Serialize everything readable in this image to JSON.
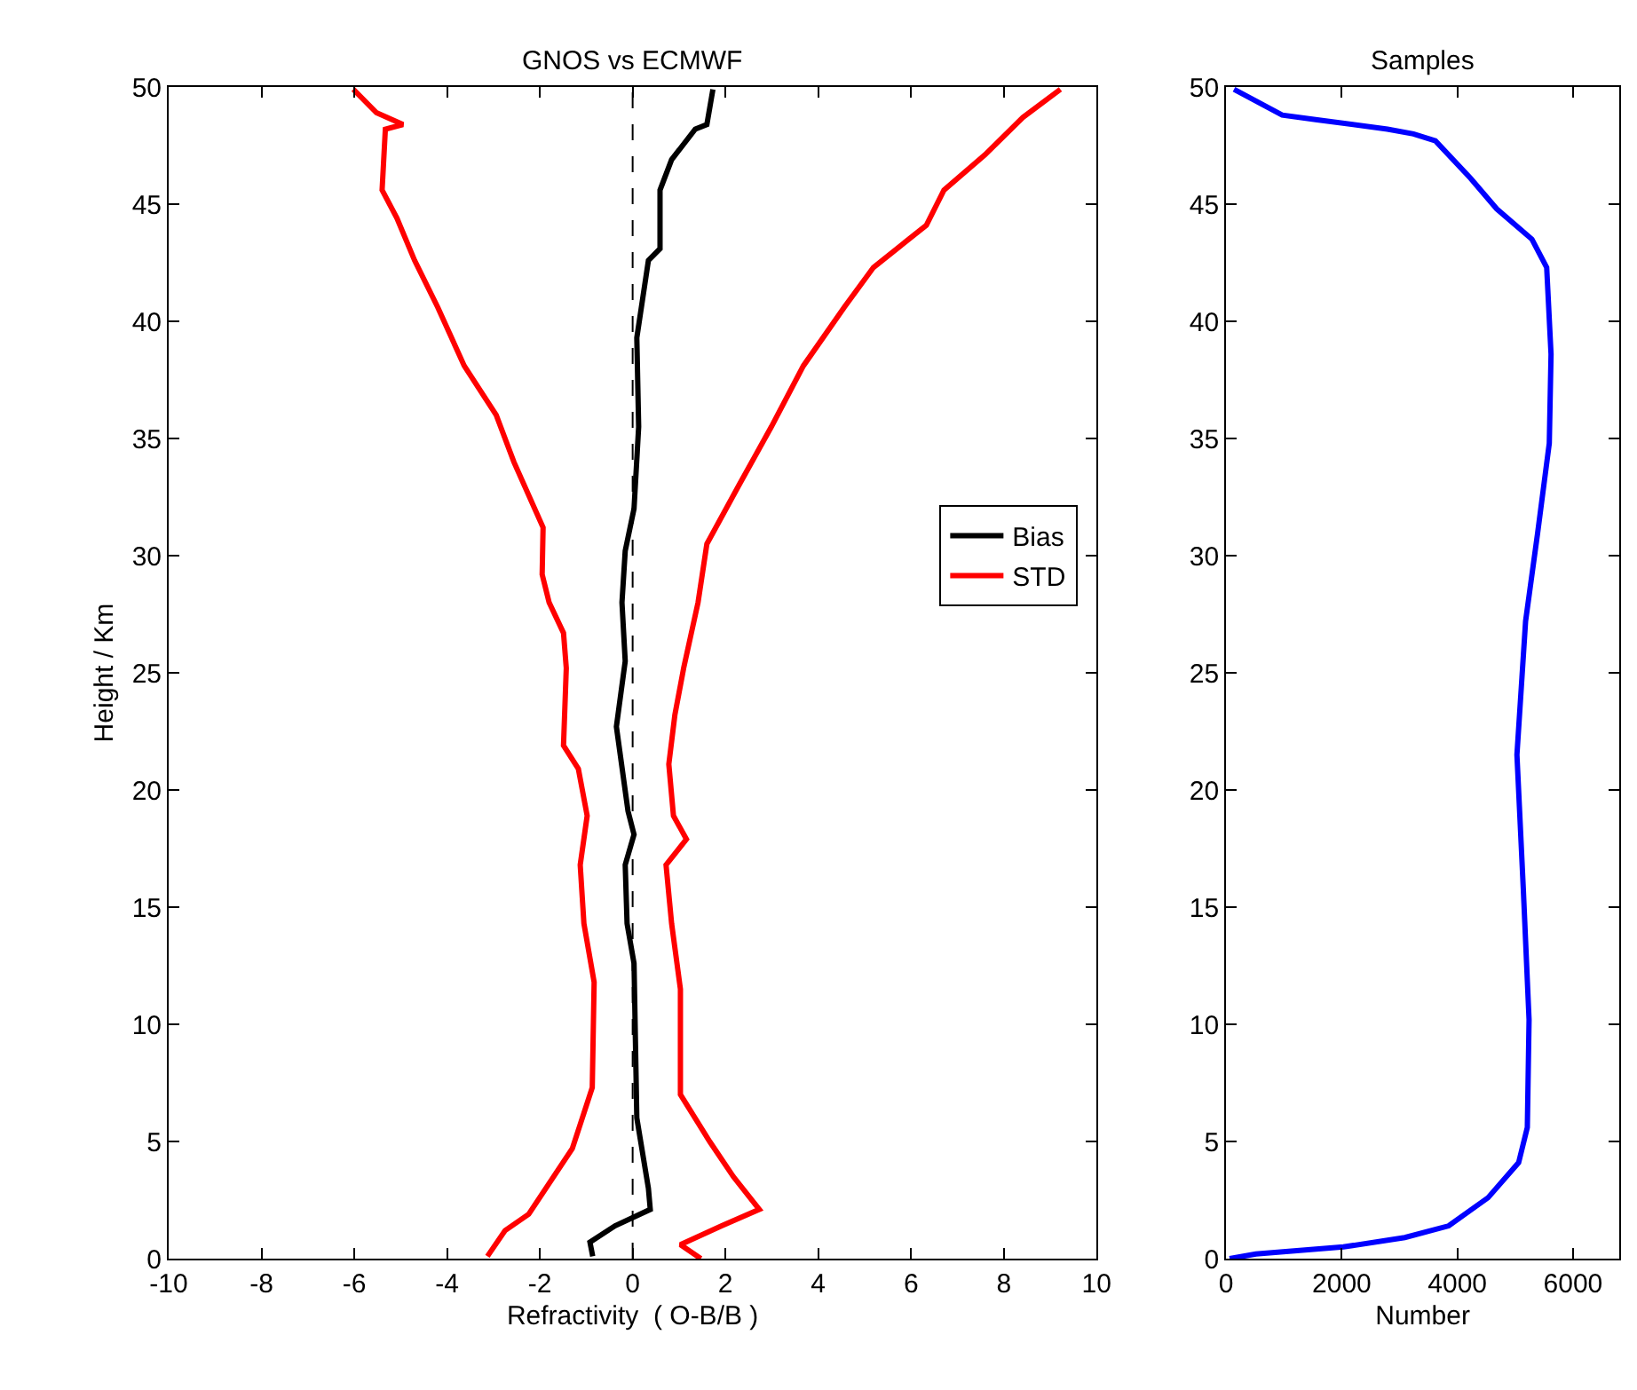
{
  "chart_data": [
    {
      "type": "line",
      "title": "GNOS vs ECMWF",
      "xlabel": "Refractivity  ( O-B/B )",
      "ylabel": "Height / Km",
      "xlim": [
        -10,
        10
      ],
      "xticks": [
        -10,
        -8,
        -6,
        -4,
        -2,
        0,
        2,
        4,
        6,
        8,
        10
      ],
      "ylim": [
        0,
        50
      ],
      "yticks": [
        0,
        5,
        10,
        15,
        20,
        25,
        30,
        35,
        40,
        45,
        50
      ],
      "legend": "right",
      "ref_lines": [
        {
          "axis": "x",
          "value": 0,
          "color": "#000000",
          "line_style": "dashed"
        }
      ],
      "series": [
        {
          "name": "Bias",
          "color": "#000000",
          "x": [
            -0.86,
            -0.92,
            -0.38,
            0.38,
            0.34,
            0.09,
            0.03,
            -0.12,
            -0.16,
            0.03,
            -0.1,
            -0.35,
            -0.16,
            -0.23,
            -0.16,
            0.03,
            0.13,
            0.09,
            0.34,
            0.59,
            0.59,
            0.84,
            1.35,
            1.6,
            1.73
          ],
          "values": [
            0.1,
            0.7,
            1.4,
            2.1,
            3.0,
            6.0,
            12.6,
            14.3,
            16.8,
            18.1,
            19.1,
            22.7,
            25.5,
            28.0,
            30.2,
            32.0,
            35.5,
            39.3,
            42.6,
            43.1,
            45.6,
            46.9,
            48.2,
            48.4,
            49.9
          ]
        },
        {
          "name": "STD",
          "color": "#ff0000",
          "x": [
            1.47,
            1.03,
            1.92,
            2.73,
            2.17,
            1.66,
            1.03,
            1.03,
            0.84,
            0.72,
            1.16,
            0.88,
            0.78,
            0.91,
            1.1,
            1.41,
            1.6,
            2.29,
            2.99,
            3.68,
            4.56,
            5.19,
            6.33,
            6.71,
            7.59,
            8.41,
            9.22
          ],
          "values": [
            0,
            0.6,
            1.4,
            2.1,
            3.5,
            5.0,
            7.0,
            11.5,
            14.3,
            16.8,
            17.9,
            18.9,
            21.1,
            23.2,
            25.2,
            28.0,
            30.5,
            33.0,
            35.5,
            38.1,
            40.6,
            42.3,
            44.1,
            45.6,
            47.1,
            48.7,
            49.9
          ]
        },
        {
          "color": "#ff0000",
          "x": [
            -3.13,
            -2.75,
            -2.24,
            -1.3,
            -0.87,
            -0.83,
            -1.05,
            -1.13,
            -0.98,
            -1.17,
            -1.49,
            -1.43,
            -1.49,
            -1.8,
            -1.95,
            -1.93,
            -2.56,
            -2.94,
            -3.63,
            -4.2,
            -4.7,
            -5.08,
            -5.4,
            -5.33,
            -4.95,
            -5.52,
            -6.02
          ],
          "values": [
            0.1,
            1.2,
            1.9,
            4.7,
            7.3,
            11.8,
            14.3,
            16.8,
            18.9,
            20.9,
            21.9,
            25.2,
            26.7,
            28.0,
            29.2,
            31.2,
            34.0,
            36.0,
            38.1,
            40.6,
            42.6,
            44.4,
            45.6,
            48.2,
            48.4,
            48.9,
            49.9
          ]
        }
      ]
    },
    {
      "type": "line",
      "title": "Samples",
      "xlabel": "Number",
      "xlim": [
        0,
        6800
      ],
      "xticks": [
        0,
        2000,
        4000,
        6000
      ],
      "ylim": [
        0,
        50
      ],
      "yticks": [
        0,
        5,
        10,
        15,
        20,
        25,
        30,
        35,
        40,
        45,
        50
      ],
      "series": [
        {
          "color": "#0000ff",
          "x": [
            60,
            515,
            2030,
            3090,
            3850,
            4530,
            5060,
            5210,
            5240,
            5140,
            5030,
            5180,
            5390,
            5590,
            5620,
            5545,
            5290,
            4680,
            4230,
            3620,
            3240,
            2790,
            1576,
            970,
            136
          ],
          "values": [
            0,
            0.2,
            0.5,
            0.9,
            1.4,
            2.6,
            4.1,
            5.6,
            10.2,
            15.8,
            21.5,
            27.2,
            31.0,
            34.8,
            38.6,
            42.3,
            43.5,
            44.8,
            46.1,
            47.7,
            48.0,
            48.2,
            48.6,
            48.8,
            49.9
          ]
        }
      ]
    }
  ]
}
